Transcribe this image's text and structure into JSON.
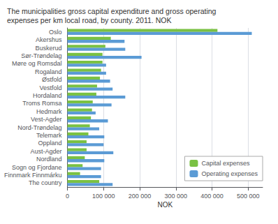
{
  "chart_data": {
    "type": "bar",
    "orientation": "horizontal",
    "title": "The municipalities gross capital expenditure and gross operating\nexpenses per km local road, by county. 2011. NOK",
    "categories": [
      "Oslo",
      "Akershus",
      "Buskerud",
      "Sør-Trøndelag",
      "Møre og Romsdal",
      "Rogaland",
      "Østfold",
      "Vestfold",
      "Hordaland",
      "Troms Romsa",
      "Hedmark",
      "Vest-Agder",
      "Nord-Trøndelag",
      "Telemark",
      "Oppland",
      "Aust-Agder",
      "Nordland",
      "Sogn og Fjordane",
      "Finnmark Finnmárku",
      "The country"
    ],
    "series": [
      {
        "name": "Capital expenses",
        "color": "#7ac143",
        "values": [
          415000,
          120000,
          105000,
          97000,
          97000,
          93000,
          90000,
          82000,
          80000,
          70000,
          68000,
          65000,
          62000,
          58000,
          53000,
          53000,
          48000,
          42000,
          35000,
          88000
        ]
      },
      {
        "name": "Operating expenses",
        "color": "#5b9bd5",
        "values": [
          510000,
          158000,
          160000,
          205000,
          107000,
          107000,
          118000,
          125000,
          160000,
          122000,
          78000,
          112000,
          88000,
          102000,
          100000,
          127000,
          102000,
          93000,
          93000,
          125000
        ]
      }
    ],
    "xlabel": "NOK",
    "xlim": [
      0,
      540000
    ],
    "xticks": [
      0,
      {
        "value": 100000,
        "label": "100 000"
      },
      {
        "value": 200000,
        "label": "200 000"
      },
      {
        "value": 300000,
        "label": "300 000"
      },
      {
        "value": 400000,
        "label": "400 000"
      },
      {
        "value": 500000,
        "label": "500 000"
      }
    ],
    "grid": true,
    "legend": "lower right"
  }
}
